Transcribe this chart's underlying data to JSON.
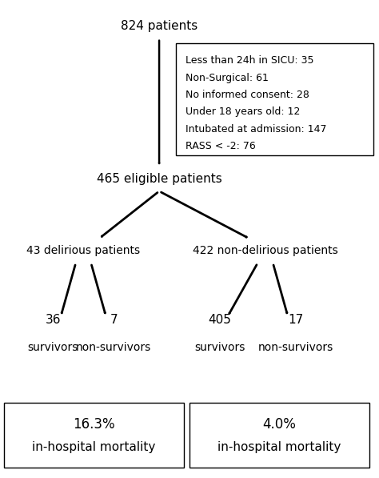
{
  "bg_color": "#ffffff",
  "title_text": "824 patients",
  "exclusion_box_lines": [
    "Less than 24h in SICU: 35",
    "Non-Surgical: 61",
    "No informed consent: 28",
    "Under 18 years old: 12",
    "Intubated at admission: 147",
    "RASS < -2: 76"
  ],
  "eligible_text": "465 eligible patients",
  "left_group_text": "43 delirious patients",
  "right_group_text": "422 non-delirious patients",
  "left_surv_num": "36",
  "left_surv_label": "survivors",
  "left_nonsurv_num": "7",
  "left_nonsurv_label": "non-survivors",
  "right_surv_num": "405",
  "right_surv_label": "survivors",
  "right_nonsurv_num": "17",
  "right_nonsurv_label": "non-survivors",
  "left_box_line1": "16.3%",
  "left_box_line2": "in-hospital mortality",
  "right_box_line1": "4.0%",
  "right_box_line2": "in-hospital mortality",
  "font_size_main": 11,
  "font_size_box": 9,
  "font_size_group": 10,
  "font_size_leaf_num": 11,
  "font_size_leaf_label": 10,
  "font_size_bottom_pct": 12,
  "font_size_bottom_label": 11
}
